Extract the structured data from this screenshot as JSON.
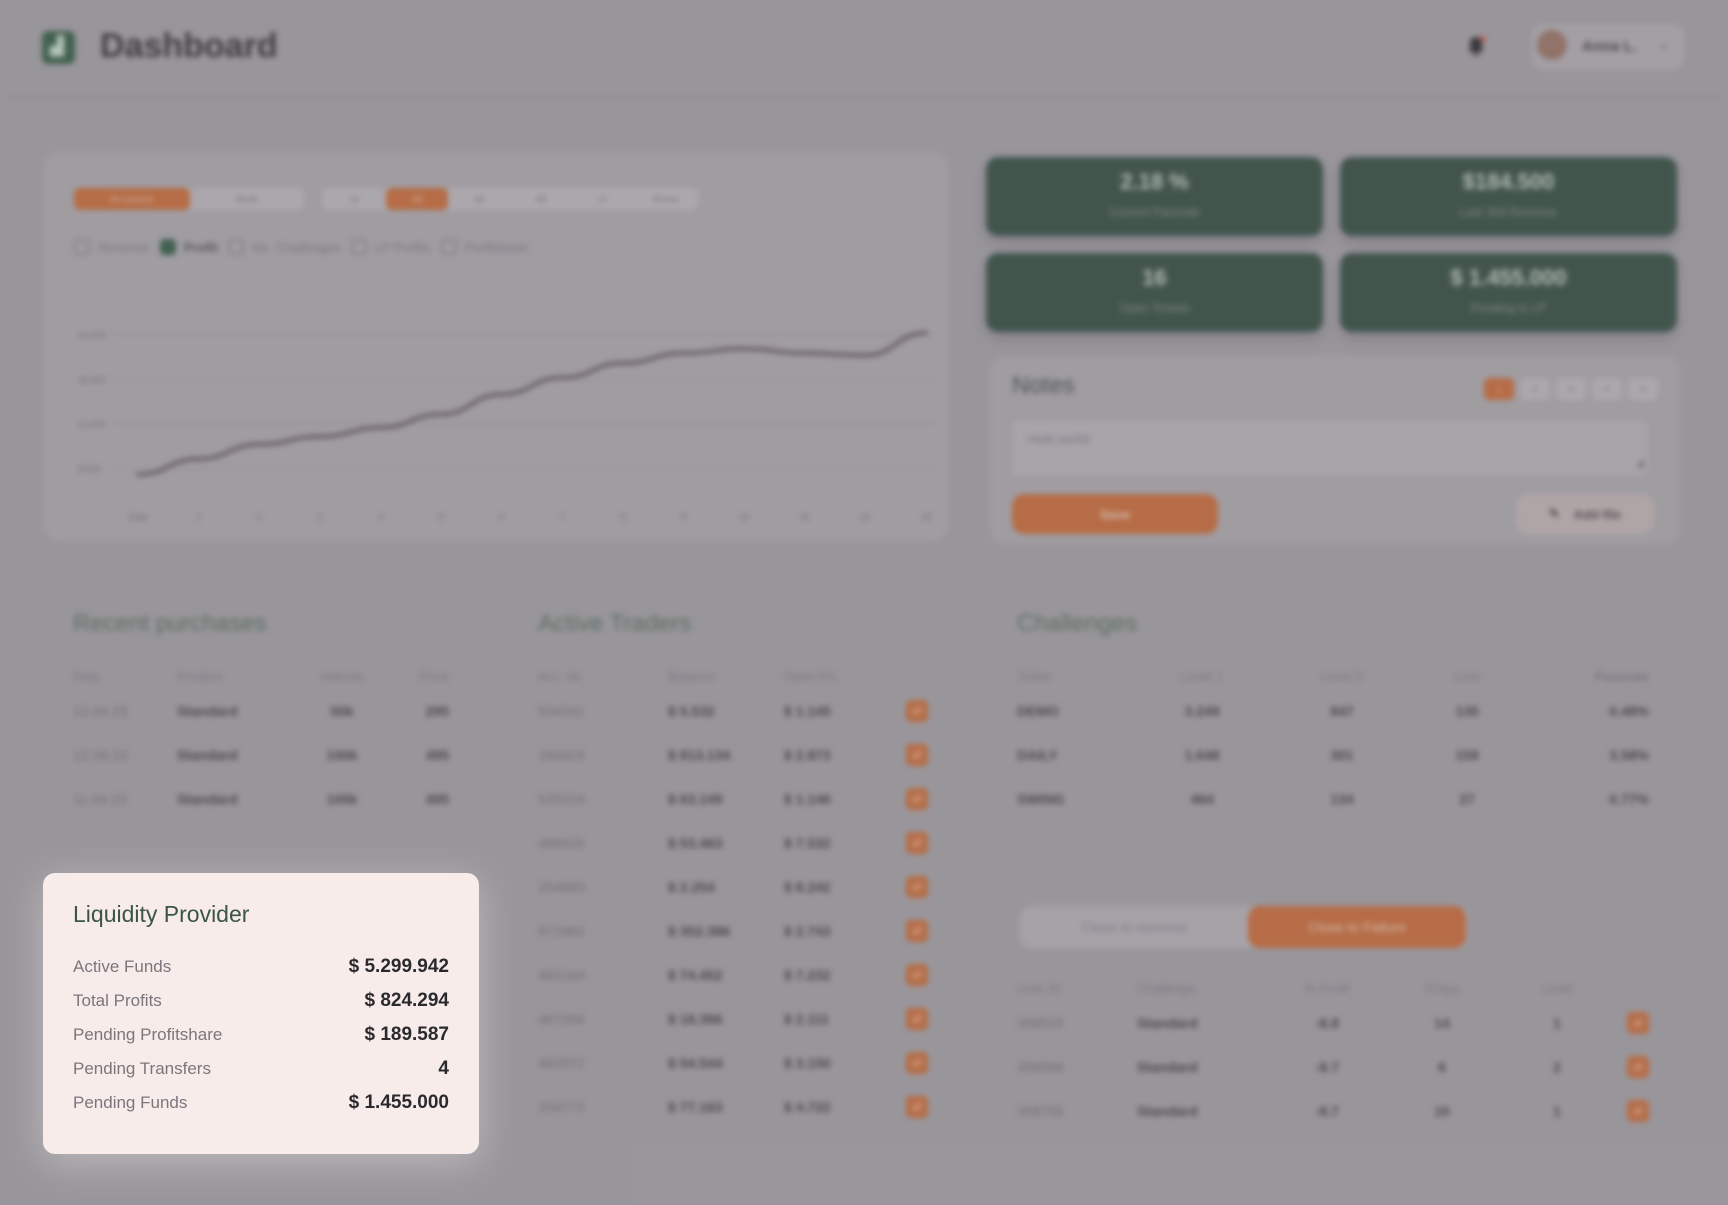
{
  "header": {
    "title": "Dashboard",
    "user_name": "Anna L."
  },
  "chart_panel": {
    "filters": [
      "All customer",
      "Month",
      "1d",
      "1W",
      "1M",
      "3M",
      "1Y",
      "All-time"
    ],
    "filter_active": 0,
    "ranges": [
      "1d",
      "1W",
      "1M",
      "3M",
      "1Y",
      "All-time"
    ],
    "range_active": 1,
    "legend": [
      "Revenue",
      "Profit",
      "No. Challenges",
      "LP Profits",
      "Profitshare"
    ],
    "legend_checked": 1
  },
  "chart_data": {
    "type": "line",
    "x": [
      "Date",
      "1",
      "2",
      "3",
      "4",
      "5",
      "6",
      "7",
      "8",
      "9",
      "10",
      "11",
      "12",
      "13"
    ],
    "series": [
      {
        "values": [
          7400,
          8800,
          10100,
          10800,
          11600,
          12800,
          14600,
          16100,
          17400,
          18300,
          18700,
          18300,
          18100,
          20100
        ]
      }
    ],
    "ylim": [
      6000,
      22000
    ],
    "grid": true,
    "legend": "none"
  },
  "kpis": [
    {
      "value": "2.18 %",
      "label": "Current Passrate"
    },
    {
      "value": "$184.500",
      "label": "Last 30d Revenue"
    },
    {
      "value": "16",
      "label": "Open Tickets"
    },
    {
      "value": "$ 1.455.000",
      "label": "Pending to LP"
    }
  ],
  "notes": {
    "title": "Notes",
    "pages": [
      "1",
      "2",
      "3",
      "4",
      "5"
    ],
    "text": "Hello world!",
    "save_label": "Save",
    "add_file_label": "Add file"
  },
  "recent_purchases": {
    "title": "Recent purchases",
    "headers": [
      "Date",
      "Product",
      "Volume",
      "Price"
    ],
    "rows": [
      [
        "12.04.23",
        "Standard",
        "50k",
        "295"
      ],
      [
        "12.04.23",
        "Standard",
        "100k",
        "495"
      ],
      [
        "11.04.23",
        "Standard",
        "100k",
        "495"
      ]
    ]
  },
  "active_traders": {
    "title": "Active Traders",
    "headers": [
      "Acc. Nr.",
      "Balance",
      "Open P/L"
    ],
    "rows": [
      [
        "534241",
        "$ 5.532",
        "$ 1.145"
      ],
      [
        "164323",
        "$ 813.134",
        "$ 2.873"
      ],
      [
        "535216",
        "$ 63.149",
        "$ 1.146"
      ],
      [
        "468425",
        "$ 53.463",
        "$ 7.532"
      ],
      [
        "254683",
        "$ 2.254",
        "$ 8.242"
      ],
      [
        "872462",
        "$ 352.386",
        "$ 2.743"
      ],
      [
        "462164",
        "$ 74.452",
        "$ 7.232"
      ],
      [
        "467264",
        "$ 18.396",
        "$ 2.111"
      ],
      [
        "462972",
        "$ 54.544",
        "$ 3.150"
      ],
      [
        "254773",
        "$ 77.163",
        "$ 4.722"
      ]
    ]
  },
  "challenges": {
    "title": "Challenges",
    "headers": [
      "Ticker",
      "Level 1",
      "Level 2",
      "Loss",
      "Passrate"
    ],
    "rows": [
      [
        "DEMO",
        "3.249",
        "847",
        "135",
        "0.48%"
      ],
      [
        "DAILY",
        "1.648",
        "301",
        "159",
        "3.58%"
      ],
      [
        "SWING",
        "464",
        "134",
        "27",
        "0.77%"
      ]
    ],
    "segment_labels": [
      "Close to success",
      "Close to Failure"
    ],
    "segment_active": 1,
    "users_headers": [
      "User ID",
      "Challenge",
      "% Profit",
      "TDays",
      "Level"
    ],
    "users_rows": [
      [
        "358520",
        "Standard",
        "-8.8",
        "14",
        "1"
      ],
      [
        "358566",
        "Standard",
        "-8.7",
        "6",
        "2"
      ],
      [
        "358755",
        "Standard",
        "-8.7",
        "10",
        "1"
      ]
    ]
  },
  "liquidity_provider": {
    "title": "Liquidity Provider",
    "rows": [
      {
        "label": "Active Funds",
        "value": "$ 5.299.942"
      },
      {
        "label": "Total Profits",
        "value": "$ 824.294"
      },
      {
        "label": "Pending Profitshare",
        "value": "$ 189.587"
      },
      {
        "label": "Pending Transfers",
        "value": "4"
      },
      {
        "label": "Pending Funds",
        "value": "$ 1.455.000"
      }
    ]
  },
  "colors": {
    "accent": "#cf6a32",
    "brand_green": "#2f4a3c",
    "card_bg": "#f7ecea"
  },
  "icons": {
    "logo": "chart-logo-icon",
    "bell": "bell-icon",
    "dropdown": "chevron-down-icon",
    "attach": "paperclip-icon"
  }
}
